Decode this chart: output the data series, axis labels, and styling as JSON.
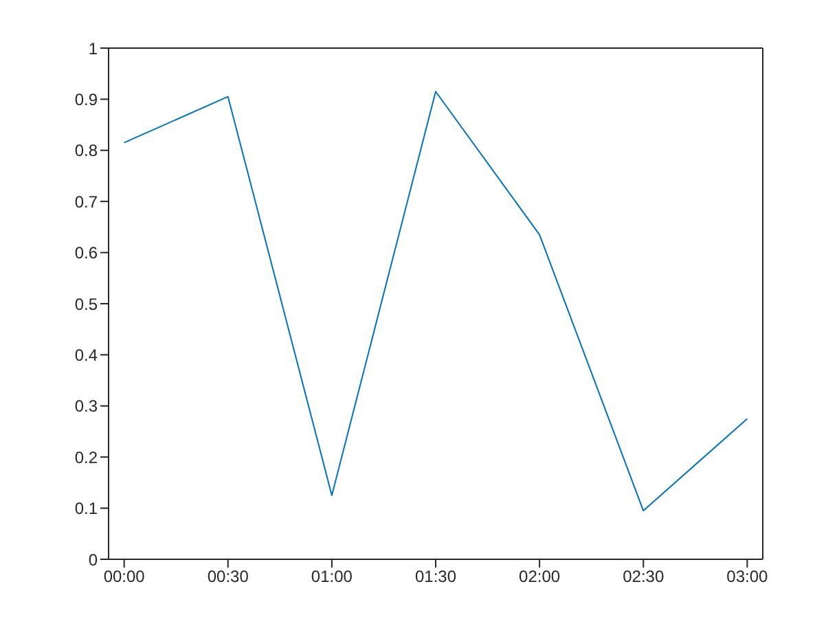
{
  "chart_data": {
    "type": "line",
    "x": [
      0,
      0.5,
      1,
      1.5,
      2,
      2.5,
      3
    ],
    "series": [
      {
        "color": "#0072bd",
        "values": [
          0.815,
          0.905,
          0.125,
          0.915,
          0.635,
          0.095,
          0.275
        ]
      }
    ],
    "xlim": [
      -0.075,
      3.075
    ],
    "xticks": [
      {
        "value": 0,
        "label": "00:00"
      },
      {
        "value": 0.5,
        "label": "00:30"
      },
      {
        "value": 1,
        "label": "01:00"
      },
      {
        "value": 1.5,
        "label": "01:30"
      },
      {
        "value": 2,
        "label": "02:00"
      },
      {
        "value": 2.5,
        "label": "02:30"
      },
      {
        "value": 3,
        "label": "03:00"
      }
    ],
    "ylim": [
      0,
      1
    ],
    "yticks": [
      0,
      0.1,
      0.2,
      0.3,
      0.4,
      0.5,
      0.6,
      0.7,
      0.8,
      0.9,
      1
    ],
    "grid": false,
    "marker": "none",
    "line_style": "solid"
  }
}
